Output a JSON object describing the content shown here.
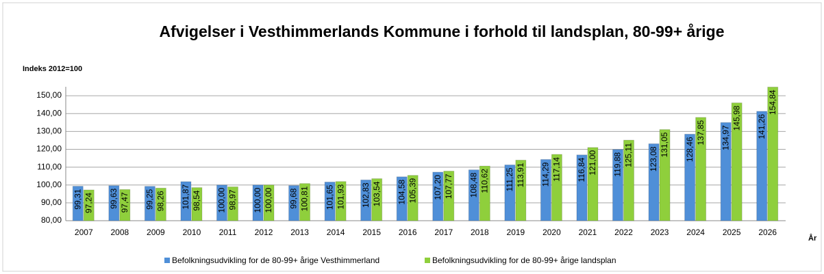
{
  "chart_data": {
    "type": "bar",
    "title": "Afvigelser i Vesthimmerlands Kommune i forhold til landsplan, 80-99+ årige",
    "y_label": "Indeks 2012=100",
    "x_label": "År",
    "categories": [
      "2007",
      "2008",
      "2009",
      "2010",
      "2011",
      "2012",
      "2013",
      "2014",
      "2015",
      "2016",
      "2017",
      "2018",
      "2019",
      "2020",
      "2021",
      "2022",
      "2023",
      "2024",
      "2025",
      "2026"
    ],
    "series": [
      {
        "name": "Befolkningsudvikling for de 80-99+ årige Vesthimmerland",
        "color": "#4f8fd8",
        "values": [
          99.31,
          99.63,
          99.25,
          101.87,
          100.0,
          100.0,
          99.68,
          101.65,
          102.83,
          104.58,
          107.2,
          108.48,
          111.25,
          114.29,
          116.84,
          119.88,
          123.08,
          128.46,
          134.97,
          141.26
        ],
        "value_labels": [
          "99,31",
          "99,63",
          "99,25",
          "101,87",
          "100,00",
          "100,00",
          "99,68",
          "101,65",
          "102,83",
          "104,58",
          "107,20",
          "108,48",
          "111,25",
          "114,29",
          "116,84",
          "119,88",
          "123,08",
          "128,46",
          "134,97",
          "141,26"
        ]
      },
      {
        "name": "Befolkningsudvikling for de 80-99+ årige landsplan",
        "color": "#8fcf3c",
        "values": [
          97.24,
          97.47,
          98.26,
          98.54,
          98.97,
          100.0,
          100.81,
          101.93,
          103.54,
          105.39,
          107.77,
          110.62,
          113.91,
          117.14,
          121.0,
          125.11,
          131.05,
          137.85,
          145.98,
          154.84
        ],
        "value_labels": [
          "97,24",
          "97,47",
          "98,26",
          "98,54",
          "98,97",
          "100,00",
          "100,81",
          "101,93",
          "103,54",
          "105,39",
          "107,77",
          "110,62",
          "113,91",
          "117,14",
          "121,00",
          "125,11",
          "131,05",
          "137,85",
          "145,98",
          "154,84"
        ]
      }
    ],
    "ylim": [
      80,
      155
    ],
    "yticks": [
      {
        "value": 80,
        "label": "80,00"
      },
      {
        "value": 90,
        "label": "90,00"
      },
      {
        "value": 100,
        "label": "100,00"
      },
      {
        "value": 110,
        "label": "110,00"
      },
      {
        "value": 120,
        "label": "120,00"
      },
      {
        "value": 130,
        "label": "130,00"
      },
      {
        "value": 140,
        "label": "140,00"
      },
      {
        "value": 150,
        "label": "150,00"
      }
    ],
    "grid": true,
    "legend": "bottom"
  }
}
